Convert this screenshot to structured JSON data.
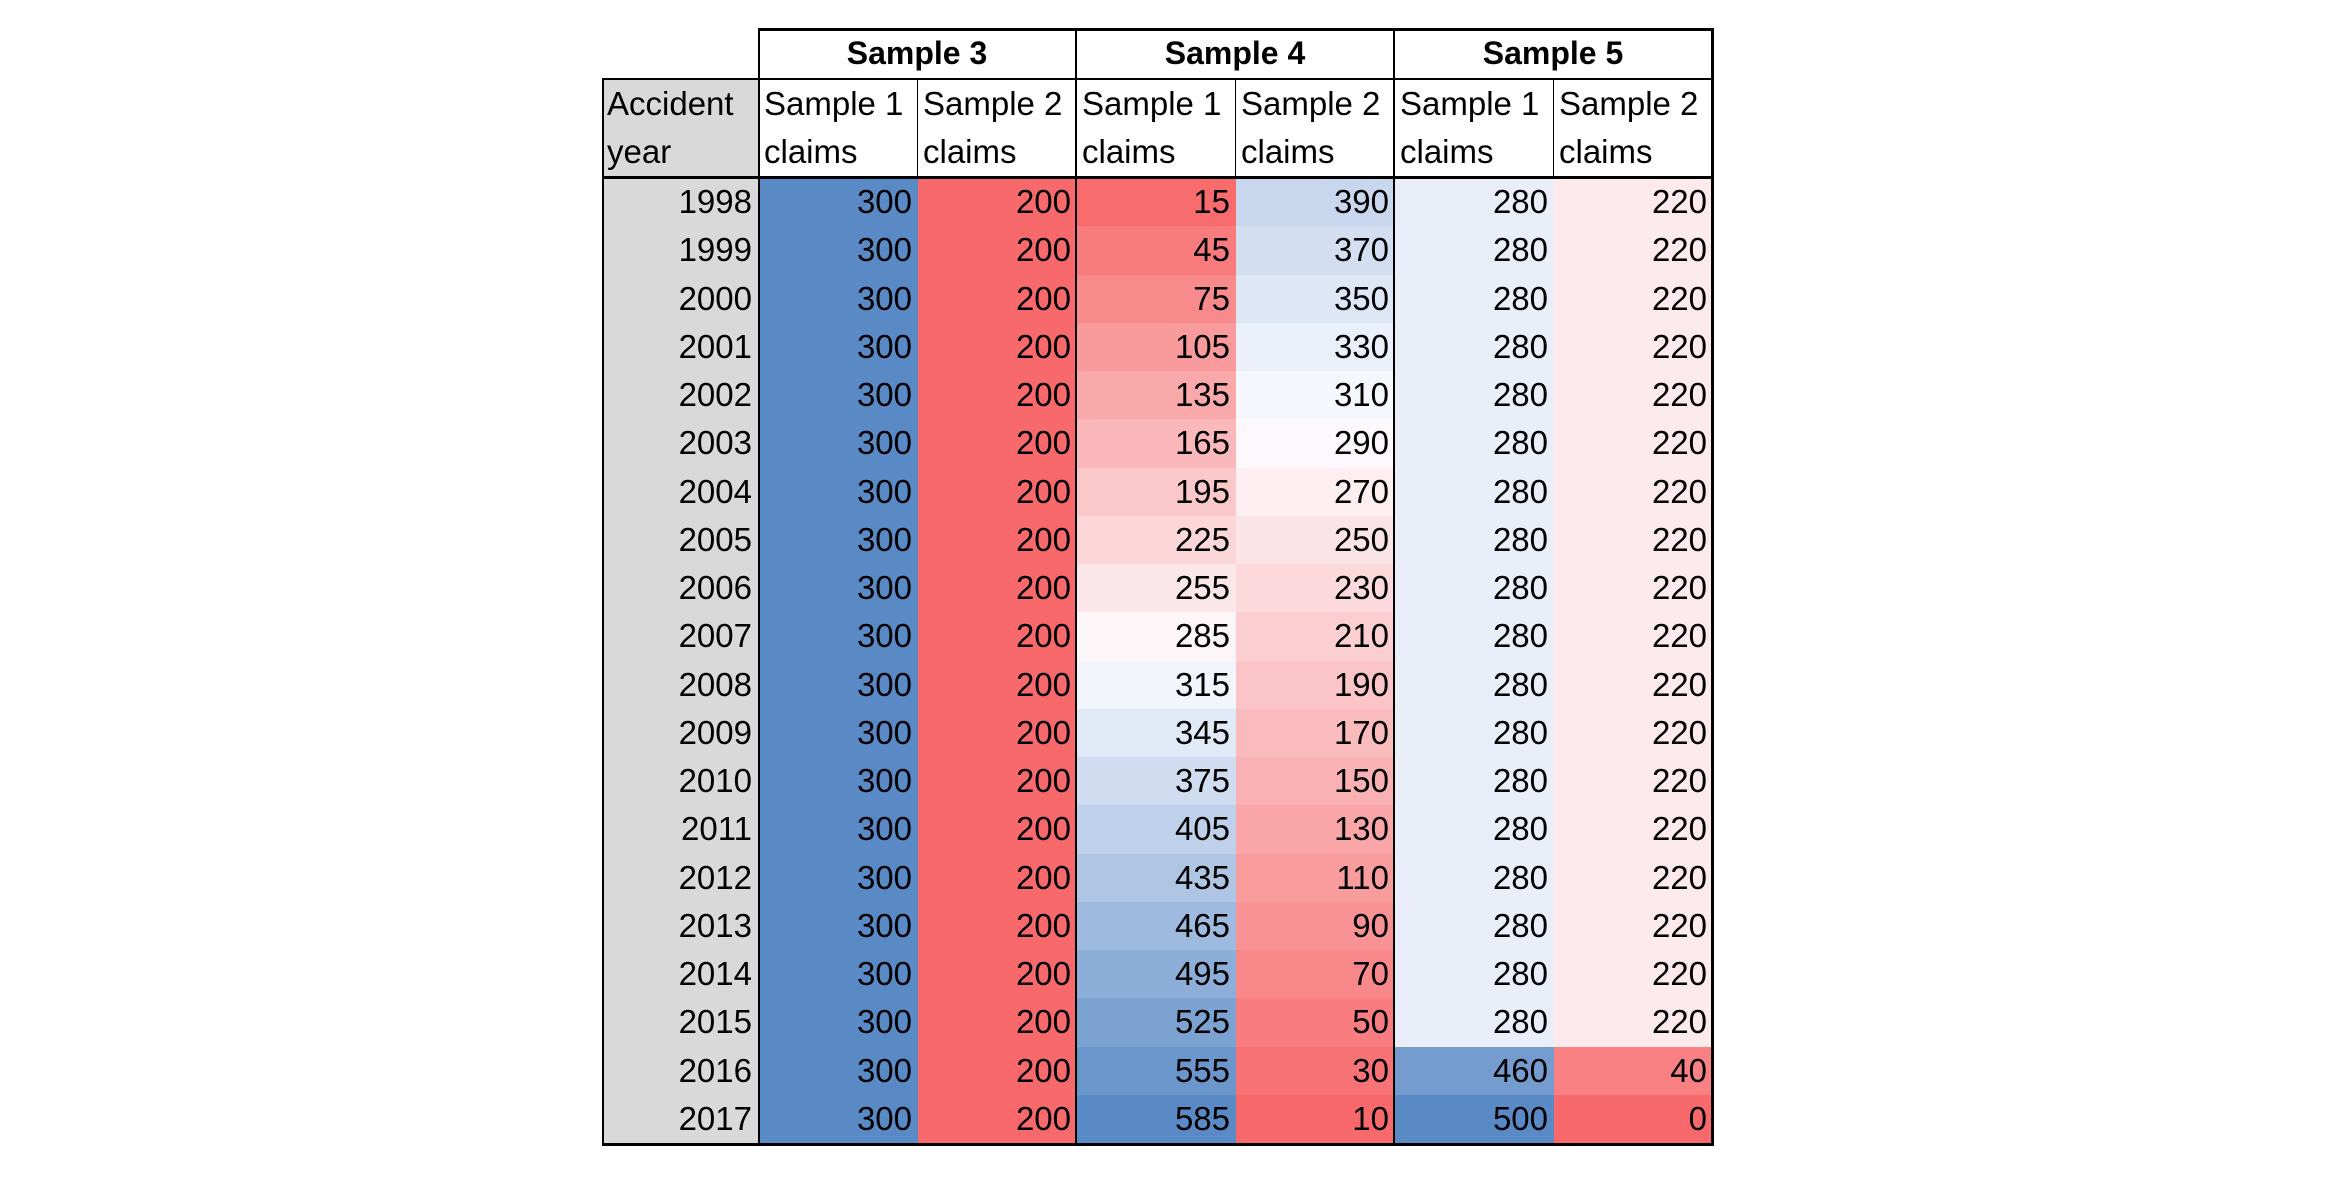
{
  "table": {
    "groups": [
      "Sample 3",
      "Sample 4",
      "Sample 5"
    ],
    "row_header": [
      "Accident",
      "year"
    ],
    "columns": [
      {
        "line1": "Sample 1",
        "line2": "claims"
      },
      {
        "line1": "Sample 2",
        "line2": "claims"
      },
      {
        "line1": "Sample 1",
        "line2": "claims"
      },
      {
        "line1": "Sample 2",
        "line2": "claims"
      },
      {
        "line1": "Sample 1",
        "line2": "claims"
      },
      {
        "line1": "Sample 2",
        "line2": "claims"
      }
    ],
    "rows": [
      {
        "year": "1998",
        "values": [
          300,
          200,
          15,
          390,
          280,
          220
        ]
      },
      {
        "year": "1999",
        "values": [
          300,
          200,
          45,
          370,
          280,
          220
        ]
      },
      {
        "year": "2000",
        "values": [
          300,
          200,
          75,
          350,
          280,
          220
        ]
      },
      {
        "year": "2001",
        "values": [
          300,
          200,
          105,
          330,
          280,
          220
        ]
      },
      {
        "year": "2002",
        "values": [
          300,
          200,
          135,
          310,
          280,
          220
        ]
      },
      {
        "year": "2003",
        "values": [
          300,
          200,
          165,
          290,
          280,
          220
        ]
      },
      {
        "year": "2004",
        "values": [
          300,
          200,
          195,
          270,
          280,
          220
        ]
      },
      {
        "year": "2005",
        "values": [
          300,
          200,
          225,
          250,
          280,
          220
        ]
      },
      {
        "year": "2006",
        "values": [
          300,
          200,
          255,
          230,
          280,
          220
        ]
      },
      {
        "year": "2007",
        "values": [
          300,
          200,
          285,
          210,
          280,
          220
        ]
      },
      {
        "year": "2008",
        "values": [
          300,
          200,
          315,
          190,
          280,
          220
        ]
      },
      {
        "year": "2009",
        "values": [
          300,
          200,
          345,
          170,
          280,
          220
        ]
      },
      {
        "year": "2010",
        "values": [
          300,
          200,
          375,
          150,
          280,
          220
        ]
      },
      {
        "year": "2011",
        "values": [
          300,
          200,
          405,
          130,
          280,
          220
        ]
      },
      {
        "year": "2012",
        "values": [
          300,
          200,
          435,
          110,
          280,
          220
        ]
      },
      {
        "year": "2013",
        "values": [
          300,
          200,
          465,
          90,
          280,
          220
        ]
      },
      {
        "year": "2014",
        "values": [
          300,
          200,
          495,
          70,
          280,
          220
        ]
      },
      {
        "year": "2015",
        "values": [
          300,
          200,
          525,
          50,
          280,
          220
        ]
      },
      {
        "year": "2016",
        "values": [
          300,
          200,
          555,
          30,
          460,
          40
        ]
      },
      {
        "year": "2017",
        "values": [
          300,
          200,
          585,
          10,
          500,
          0
        ]
      }
    ]
  },
  "colors": {
    "year_column_fill": "#d9d9d9",
    "scale_blue": "#5a8ac6",
    "scale_white": "#fcfcff",
    "scale_red": "#f8696b",
    "border": "#000000"
  }
}
